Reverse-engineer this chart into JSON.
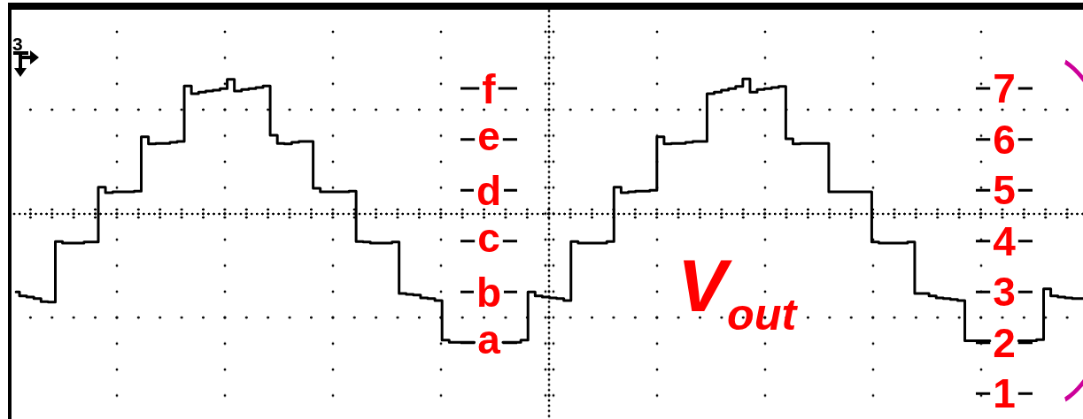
{
  "chart_data": {
    "type": "step",
    "categories": [
      null,
      null,
      null,
      null,
      null,
      null,
      null,
      null,
      null,
      null,
      null,
      null,
      null,
      null,
      null,
      null,
      null,
      null,
      null,
      null,
      null,
      null,
      null,
      null,
      null,
      null,
      null,
      null,
      null,
      null,
      null,
      null,
      null,
      null,
      null,
      null,
      null,
      null,
      null,
      null,
      null,
      null,
      null,
      null,
      null,
      null,
      null,
      null,
      null,
      null,
      null,
      null,
      null,
      null,
      null,
      null,
      null,
      null,
      null,
      null,
      null,
      null,
      null,
      null,
      null,
      null,
      null,
      null,
      null,
      null,
      null,
      null,
      null,
      null,
      null,
      null,
      null,
      null,
      null,
      null,
      null,
      null,
      null,
      null,
      null,
      null,
      null,
      null,
      null,
      null,
      null,
      null,
      null,
      null,
      null,
      null,
      null,
      null,
      null,
      null,
      null,
      null,
      null,
      null,
      null,
      null,
      null,
      null,
      null,
      null,
      null,
      null,
      null,
      null,
      null,
      null,
      null,
      null,
      null,
      null,
      null,
      null,
      null,
      null,
      null,
      null,
      null,
      null,
      null,
      null,
      null,
      null,
      null,
      null,
      null,
      null,
      null,
      null,
      null,
      null,
      null,
      null,
      null,
      null,
      null,
      null,
      null,
      null,
      null,
      null
    ],
    "values": [
      3.0,
      2.92,
      2.9,
      2.87,
      2.81,
      2.8,
      3.99,
      3.96,
      3.96,
      3.96,
      3.98,
      3.98,
      5.06,
      4.95,
      4.97,
      4.97,
      4.97,
      4.98,
      6.05,
      5.91,
      5.92,
      5.92,
      5.94,
      5.96,
      7.05,
      6.9,
      6.93,
      6.95,
      6.97,
      7.0,
      7.18,
      6.95,
      6.98,
      7.0,
      7.02,
      7.05,
      6.08,
      5.92,
      5.91,
      5.94,
      5.96,
      5.96,
      5.04,
      4.97,
      4.97,
      4.97,
      4.97,
      4.98,
      3.99,
      3.98,
      3.96,
      3.96,
      3.96,
      3.98,
      2.97,
      2.95,
      2.94,
      2.88,
      2.87,
      2.83,
      2.05,
      2.01,
      2.01,
      2.01,
      2.01,
      null,
      null,
      null,
      2.01,
      2.01,
      2.01,
      2.05,
      3.0,
      2.92,
      2.9,
      2.88,
      2.87,
      2.83,
      3.99,
      3.96,
      3.96,
      3.96,
      3.96,
      3.99,
      5.06,
      4.95,
      4.97,
      4.98,
      4.98,
      5.0,
      6.05,
      5.91,
      5.92,
      5.92,
      5.94,
      5.96,
      5.96,
      6.9,
      6.93,
      6.97,
      7.0,
      7.04,
      7.19,
      6.93,
      6.98,
      7.0,
      7.02,
      7.04,
      6.01,
      5.91,
      5.92,
      5.92,
      5.92,
      5.92,
      4.97,
      4.97,
      4.97,
      4.97,
      4.97,
      4.97,
      3.98,
      3.96,
      3.96,
      3.96,
      3.96,
      3.98,
      2.97,
      2.97,
      2.92,
      2.88,
      2.87,
      2.85,
      2.83,
      2.04,
      2.04,
      2.04,
      2.04,
      null,
      null,
      null,
      2.04,
      2.04,
      2.04,
      2.06,
      3.06,
      2.92,
      2.9,
      2.88,
      2.87,
      2.87
    ],
    "color": "#000000",
    "ylim": [
      0.5,
      8.55
    ],
    "yticks": [
      1,
      2,
      3,
      4,
      5,
      6,
      7
    ],
    "annotations": [
      "V$_{out}$",
      "3",
      "f",
      "e",
      "d",
      "c",
      "b",
      "a"
    ]
  }
}
